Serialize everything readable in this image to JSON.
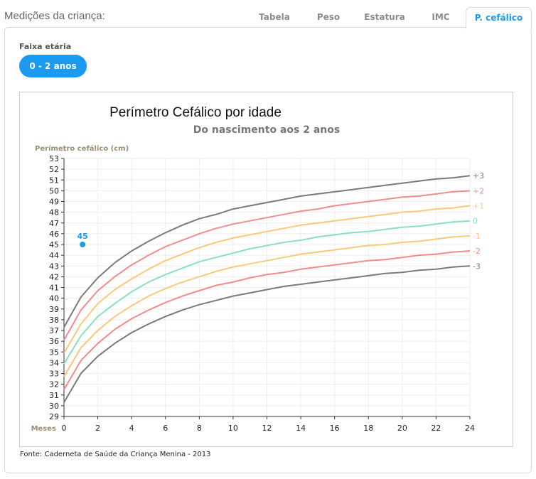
{
  "header": {
    "title": "Medições da criança:",
    "tabs": [
      {
        "label": "Tabela",
        "active": false
      },
      {
        "label": "Peso",
        "active": false
      },
      {
        "label": "Estatura",
        "active": false
      },
      {
        "label": "IMC",
        "active": false
      },
      {
        "label": "P. cefálico",
        "active": true
      }
    ]
  },
  "filter": {
    "label": "Faixa etária",
    "selected": "0 - 2 anos"
  },
  "source": "Fonte: Caderneta de Saúde da Criança Menina - 2013",
  "colors": {
    "accent": "#1a9bf0",
    "axis_title": "#9a8f6e",
    "grid": "#eeeeee"
  },
  "chart_data": {
    "type": "line",
    "title": "Perímetro Cefálico por idade",
    "subtitle": "Do nascimento aos 2 anos",
    "ylabel": "Perímetro cefálico (cm)",
    "xlabel": "Meses",
    "xlim": [
      0,
      24
    ],
    "ylim": [
      29,
      53
    ],
    "xticks": [
      0,
      2,
      4,
      6,
      8,
      10,
      12,
      14,
      16,
      18,
      20,
      22,
      24
    ],
    "yticks": [
      29,
      30,
      31,
      32,
      33,
      34,
      35,
      36,
      37,
      38,
      39,
      40,
      41,
      42,
      43,
      44,
      45,
      46,
      47,
      48,
      49,
      50,
      51,
      52,
      53
    ],
    "grid": true,
    "x": [
      0,
      1,
      2,
      3,
      4,
      5,
      6,
      7,
      8,
      9,
      10,
      11,
      12,
      13,
      14,
      15,
      16,
      17,
      18,
      19,
      20,
      21,
      22,
      23,
      24
    ],
    "series": [
      {
        "name": "+3",
        "color": "#7a7a7a",
        "values": [
          37.3,
          40.1,
          41.9,
          43.3,
          44.4,
          45.3,
          46.1,
          46.8,
          47.4,
          47.8,
          48.3,
          48.6,
          48.9,
          49.2,
          49.5,
          49.7,
          49.9,
          50.1,
          50.3,
          50.5,
          50.7,
          50.9,
          51.1,
          51.2,
          51.4
        ]
      },
      {
        "name": "+2",
        "color": "#f28b8b",
        "values": [
          36.1,
          38.9,
          40.7,
          42.0,
          43.1,
          44.0,
          44.8,
          45.4,
          46.0,
          46.5,
          46.9,
          47.2,
          47.5,
          47.8,
          48.1,
          48.3,
          48.6,
          48.8,
          49.0,
          49.2,
          49.4,
          49.5,
          49.7,
          49.9,
          50.0
        ]
      },
      {
        "name": "+1",
        "color": "#f9c979",
        "values": [
          34.9,
          37.6,
          39.5,
          40.8,
          41.8,
          42.7,
          43.5,
          44.1,
          44.7,
          45.2,
          45.6,
          45.9,
          46.2,
          46.5,
          46.8,
          47.0,
          47.2,
          47.4,
          47.6,
          47.8,
          48.0,
          48.1,
          48.3,
          48.4,
          48.6
        ]
      },
      {
        "name": "0",
        "color": "#88e0c2",
        "values": [
          33.9,
          36.5,
          38.3,
          39.5,
          40.6,
          41.5,
          42.2,
          42.8,
          43.4,
          43.8,
          44.2,
          44.6,
          44.9,
          45.2,
          45.4,
          45.7,
          45.9,
          46.1,
          46.2,
          46.4,
          46.6,
          46.7,
          46.9,
          47.1,
          47.2
        ]
      },
      {
        "name": "-1",
        "color": "#f9c979",
        "values": [
          32.7,
          35.4,
          37.0,
          38.3,
          39.3,
          40.2,
          40.9,
          41.5,
          42.0,
          42.5,
          42.9,
          43.2,
          43.5,
          43.8,
          44.1,
          44.3,
          44.5,
          44.7,
          44.9,
          45.0,
          45.2,
          45.3,
          45.5,
          45.7,
          45.8
        ]
      },
      {
        "name": "-2",
        "color": "#f28b8b",
        "values": [
          31.5,
          34.2,
          35.8,
          37.1,
          38.1,
          38.9,
          39.6,
          40.2,
          40.7,
          41.2,
          41.5,
          41.9,
          42.2,
          42.4,
          42.7,
          42.9,
          43.1,
          43.3,
          43.5,
          43.6,
          43.8,
          44.0,
          44.1,
          44.3,
          44.4
        ]
      },
      {
        "name": "-3",
        "color": "#7a7a7a",
        "values": [
          30.3,
          33.0,
          34.6,
          35.8,
          36.8,
          37.6,
          38.3,
          38.9,
          39.4,
          39.8,
          40.2,
          40.5,
          40.8,
          41.1,
          41.3,
          41.5,
          41.7,
          41.9,
          42.1,
          42.3,
          42.4,
          42.6,
          42.7,
          42.9,
          43.0
        ]
      }
    ],
    "measurement": {
      "x": 1.1,
      "y": 45,
      "label": "45",
      "color": "#1a9bf0"
    }
  }
}
